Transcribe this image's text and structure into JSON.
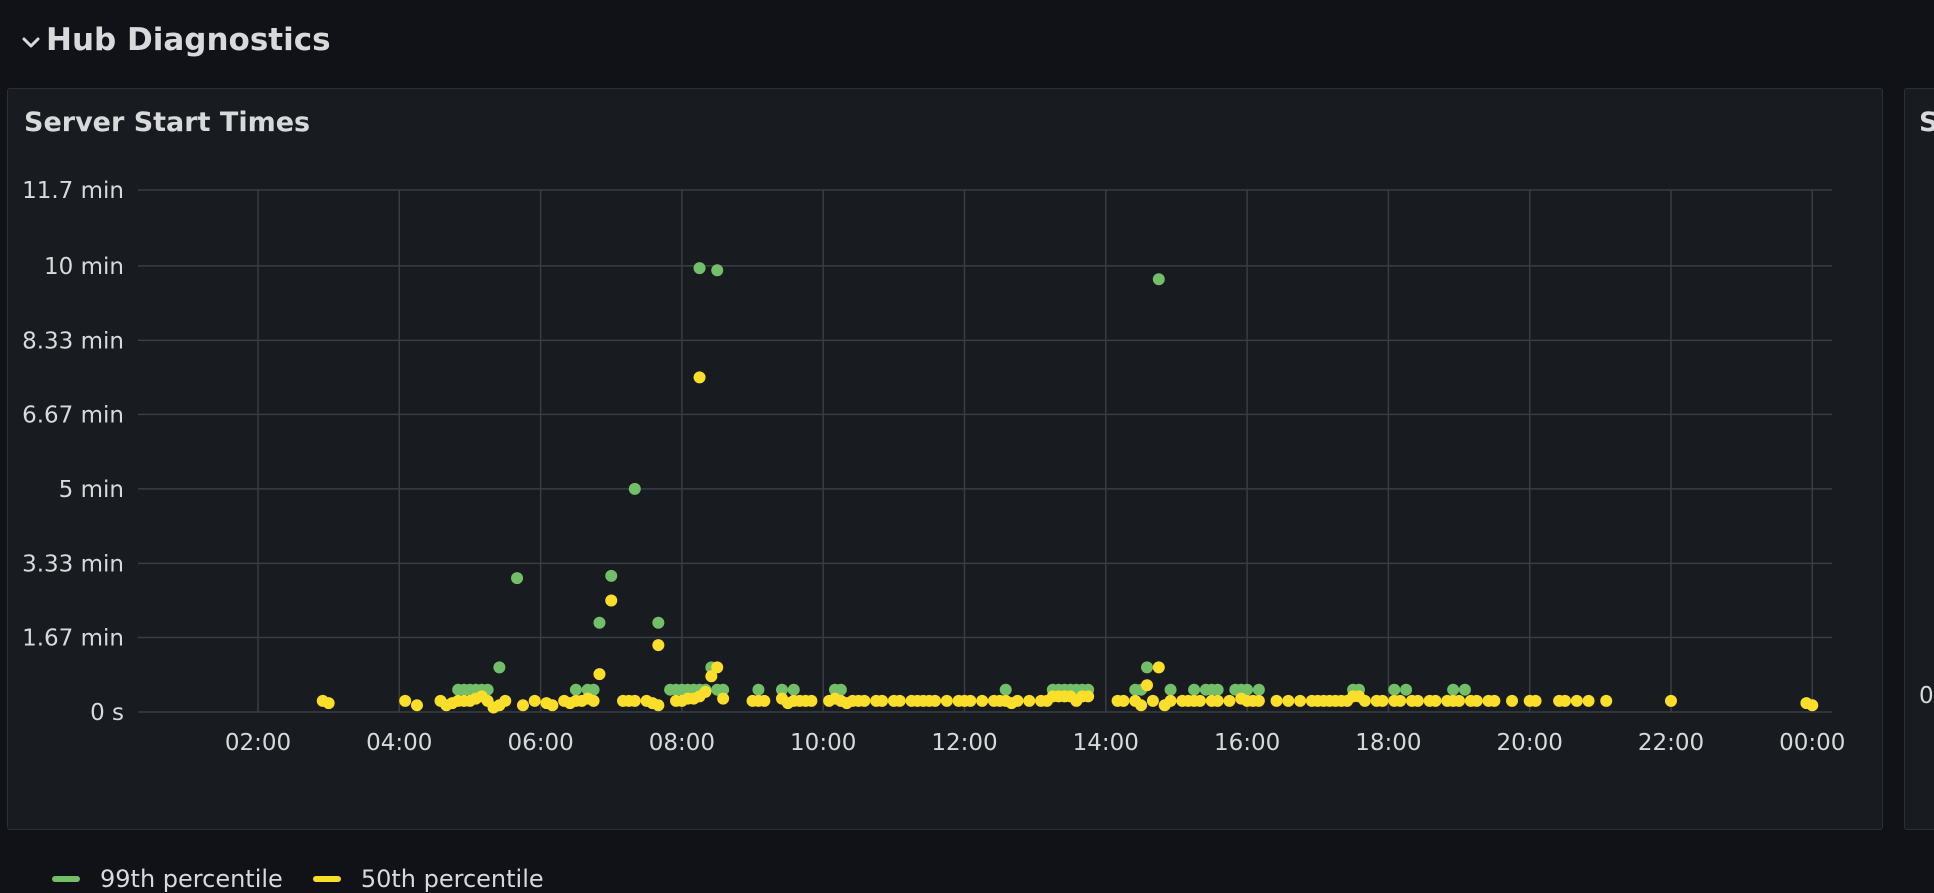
{
  "row": {
    "title": "Hub Diagnostics",
    "chevron_icon": "chevron-down-icon"
  },
  "panel": {
    "title": "Server Start Times"
  },
  "panel2": {
    "title": "S",
    "tick": "0"
  },
  "colors": {
    "background": "#111217",
    "panel": "#181b1f",
    "grid": "#3a3d44",
    "p99": "#73bf69",
    "p50": "#fade2a"
  },
  "chart_data": {
    "type": "scatter",
    "xlabel": "",
    "ylabel": "",
    "grid": true,
    "legend_position": "bottom-left",
    "x_ticks": [
      "02:00",
      "04:00",
      "06:00",
      "08:00",
      "10:00",
      "12:00",
      "14:00",
      "16:00",
      "18:00",
      "20:00",
      "22:00",
      "00:00"
    ],
    "y_ticks": [
      "0 s",
      "1.67 min",
      "3.33 min",
      "5 min",
      "6.67 min",
      "8.33 min",
      "10 min",
      "11.7 min"
    ],
    "ylim": [
      0,
      11.7
    ],
    "y_unit": "min",
    "series": [
      {
        "name": "99th percentile",
        "color": "#73bf69",
        "points": [
          [
            "04:50",
            0.5
          ],
          [
            "04:55",
            0.5
          ],
          [
            "05:00",
            0.5
          ],
          [
            "05:05",
            0.5
          ],
          [
            "05:10",
            0.5
          ],
          [
            "05:15",
            0.5
          ],
          [
            "05:25",
            1.0
          ],
          [
            "05:40",
            3.0
          ],
          [
            "06:30",
            0.5
          ],
          [
            "06:40",
            0.5
          ],
          [
            "06:45",
            0.5
          ],
          [
            "06:50",
            2.0
          ],
          [
            "07:00",
            3.05
          ],
          [
            "07:20",
            5.0
          ],
          [
            "07:40",
            2.0
          ],
          [
            "07:50",
            0.5
          ],
          [
            "07:55",
            0.5
          ],
          [
            "08:00",
            0.5
          ],
          [
            "08:05",
            0.5
          ],
          [
            "08:10",
            0.5
          ],
          [
            "08:15",
            0.5
          ],
          [
            "08:15",
            9.95
          ],
          [
            "08:20",
            0.5
          ],
          [
            "08:25",
            1.0
          ],
          [
            "08:30",
            0.5
          ],
          [
            "08:30",
            9.9
          ],
          [
            "08:35",
            0.5
          ],
          [
            "09:05",
            0.5
          ],
          [
            "09:25",
            0.5
          ],
          [
            "09:35",
            0.5
          ],
          [
            "10:10",
            0.5
          ],
          [
            "10:15",
            0.5
          ],
          [
            "12:35",
            0.5
          ],
          [
            "13:15",
            0.5
          ],
          [
            "13:20",
            0.5
          ],
          [
            "13:25",
            0.5
          ],
          [
            "13:30",
            0.5
          ],
          [
            "13:35",
            0.5
          ],
          [
            "13:40",
            0.5
          ],
          [
            "13:45",
            0.5
          ],
          [
            "14:25",
            0.5
          ],
          [
            "14:30",
            0.5
          ],
          [
            "14:35",
            1.0
          ],
          [
            "14:45",
            9.7
          ],
          [
            "14:55",
            0.5
          ],
          [
            "15:15",
            0.5
          ],
          [
            "15:25",
            0.5
          ],
          [
            "15:30",
            0.5
          ],
          [
            "15:35",
            0.5
          ],
          [
            "15:50",
            0.5
          ],
          [
            "15:55",
            0.5
          ],
          [
            "16:00",
            0.5
          ],
          [
            "16:10",
            0.5
          ],
          [
            "17:30",
            0.5
          ],
          [
            "17:35",
            0.5
          ],
          [
            "18:05",
            0.5
          ],
          [
            "18:15",
            0.5
          ],
          [
            "18:55",
            0.5
          ],
          [
            "19:05",
            0.5
          ]
        ]
      },
      {
        "name": "50th percentile",
        "color": "#fade2a",
        "points": [
          [
            "02:55",
            0.25
          ],
          [
            "03:00",
            0.2
          ],
          [
            "04:05",
            0.25
          ],
          [
            "04:15",
            0.15
          ],
          [
            "04:35",
            0.25
          ],
          [
            "04:40",
            0.15
          ],
          [
            "04:45",
            0.2
          ],
          [
            "04:50",
            0.25
          ],
          [
            "04:55",
            0.25
          ],
          [
            "05:00",
            0.25
          ],
          [
            "05:05",
            0.3
          ],
          [
            "05:10",
            0.35
          ],
          [
            "05:15",
            0.25
          ],
          [
            "05:20",
            0.1
          ],
          [
            "05:25",
            0.15
          ],
          [
            "05:30",
            0.25
          ],
          [
            "05:45",
            0.15
          ],
          [
            "05:55",
            0.25
          ],
          [
            "06:05",
            0.2
          ],
          [
            "06:10",
            0.15
          ],
          [
            "06:20",
            0.25
          ],
          [
            "06:25",
            0.2
          ],
          [
            "06:30",
            0.25
          ],
          [
            "06:35",
            0.25
          ],
          [
            "06:40",
            0.3
          ],
          [
            "06:45",
            0.25
          ],
          [
            "06:50",
            0.85
          ],
          [
            "07:00",
            2.5
          ],
          [
            "07:10",
            0.25
          ],
          [
            "07:15",
            0.25
          ],
          [
            "07:20",
            0.25
          ],
          [
            "07:30",
            0.25
          ],
          [
            "07:35",
            0.2
          ],
          [
            "07:40",
            1.5
          ],
          [
            "07:40",
            0.15
          ],
          [
            "07:55",
            0.25
          ],
          [
            "08:00",
            0.25
          ],
          [
            "08:05",
            0.3
          ],
          [
            "08:10",
            0.3
          ],
          [
            "08:15",
            0.35
          ],
          [
            "08:15",
            7.5
          ],
          [
            "08:20",
            0.45
          ],
          [
            "08:25",
            0.8
          ],
          [
            "08:30",
            1.0
          ],
          [
            "08:35",
            0.3
          ],
          [
            "09:00",
            0.25
          ],
          [
            "09:05",
            0.25
          ],
          [
            "09:10",
            0.25
          ],
          [
            "09:25",
            0.3
          ],
          [
            "09:30",
            0.2
          ],
          [
            "09:35",
            0.25
          ],
          [
            "09:40",
            0.25
          ],
          [
            "09:45",
            0.25
          ],
          [
            "09:50",
            0.25
          ],
          [
            "10:05",
            0.25
          ],
          [
            "10:10",
            0.3
          ],
          [
            "10:15",
            0.25
          ],
          [
            "10:20",
            0.2
          ],
          [
            "10:25",
            0.25
          ],
          [
            "10:30",
            0.25
          ],
          [
            "10:35",
            0.25
          ],
          [
            "10:45",
            0.25
          ],
          [
            "10:50",
            0.25
          ],
          [
            "11:00",
            0.25
          ],
          [
            "11:05",
            0.25
          ],
          [
            "11:15",
            0.25
          ],
          [
            "11:20",
            0.25
          ],
          [
            "11:25",
            0.25
          ],
          [
            "11:30",
            0.25
          ],
          [
            "11:35",
            0.25
          ],
          [
            "11:45",
            0.25
          ],
          [
            "11:55",
            0.25
          ],
          [
            "12:00",
            0.25
          ],
          [
            "12:05",
            0.25
          ],
          [
            "12:15",
            0.25
          ],
          [
            "12:25",
            0.25
          ],
          [
            "12:30",
            0.25
          ],
          [
            "12:35",
            0.25
          ],
          [
            "12:40",
            0.2
          ],
          [
            "12:45",
            0.25
          ],
          [
            "12:55",
            0.25
          ],
          [
            "13:05",
            0.25
          ],
          [
            "13:10",
            0.25
          ],
          [
            "13:15",
            0.35
          ],
          [
            "13:20",
            0.35
          ],
          [
            "13:25",
            0.35
          ],
          [
            "13:30",
            0.35
          ],
          [
            "13:35",
            0.25
          ],
          [
            "13:40",
            0.35
          ],
          [
            "13:45",
            0.35
          ],
          [
            "14:10",
            0.25
          ],
          [
            "14:15",
            0.25
          ],
          [
            "14:25",
            0.25
          ],
          [
            "14:30",
            0.15
          ],
          [
            "14:35",
            0.6
          ],
          [
            "14:40",
            0.25
          ],
          [
            "14:45",
            1.0
          ],
          [
            "14:50",
            0.15
          ],
          [
            "14:55",
            0.25
          ],
          [
            "15:05",
            0.25
          ],
          [
            "15:10",
            0.25
          ],
          [
            "15:15",
            0.25
          ],
          [
            "15:20",
            0.25
          ],
          [
            "15:30",
            0.25
          ],
          [
            "15:35",
            0.25
          ],
          [
            "15:45",
            0.25
          ],
          [
            "15:55",
            0.3
          ],
          [
            "16:00",
            0.25
          ],
          [
            "16:05",
            0.25
          ],
          [
            "16:10",
            0.25
          ],
          [
            "16:25",
            0.25
          ],
          [
            "16:35",
            0.25
          ],
          [
            "16:45",
            0.25
          ],
          [
            "16:55",
            0.25
          ],
          [
            "17:00",
            0.25
          ],
          [
            "17:05",
            0.25
          ],
          [
            "17:10",
            0.25
          ],
          [
            "17:15",
            0.25
          ],
          [
            "17:20",
            0.25
          ],
          [
            "17:25",
            0.25
          ],
          [
            "17:30",
            0.35
          ],
          [
            "17:35",
            0.35
          ],
          [
            "17:40",
            0.25
          ],
          [
            "17:50",
            0.25
          ],
          [
            "17:55",
            0.25
          ],
          [
            "18:05",
            0.25
          ],
          [
            "18:10",
            0.25
          ],
          [
            "18:20",
            0.25
          ],
          [
            "18:25",
            0.25
          ],
          [
            "18:35",
            0.25
          ],
          [
            "18:40",
            0.25
          ],
          [
            "18:50",
            0.25
          ],
          [
            "18:55",
            0.25
          ],
          [
            "19:00",
            0.25
          ],
          [
            "19:10",
            0.25
          ],
          [
            "19:15",
            0.25
          ],
          [
            "19:25",
            0.25
          ],
          [
            "19:30",
            0.25
          ],
          [
            "19:45",
            0.25
          ],
          [
            "20:00",
            0.25
          ],
          [
            "20:05",
            0.25
          ],
          [
            "20:25",
            0.25
          ],
          [
            "20:30",
            0.25
          ],
          [
            "20:40",
            0.25
          ],
          [
            "20:50",
            0.25
          ],
          [
            "21:05",
            0.25
          ],
          [
            "22:00",
            0.25
          ],
          [
            "23:55",
            0.2
          ],
          [
            "00:00",
            0.15
          ]
        ]
      }
    ]
  }
}
